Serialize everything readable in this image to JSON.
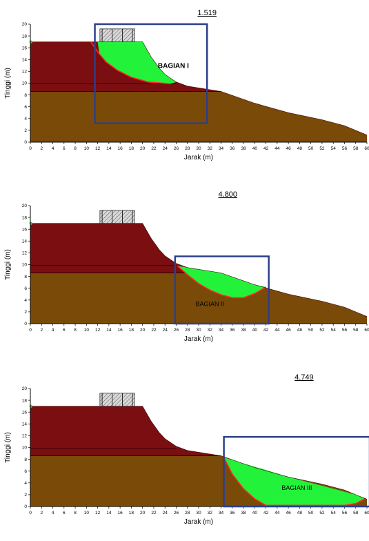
{
  "chart_data": [
    {
      "type": "area",
      "factor_of_safety": "1.519",
      "region_label": "BAGIAN I",
      "xlabel": "Jarak (m)",
      "ylabel": "Tinggi (m)",
      "xlim": [
        0,
        60
      ],
      "ylim": [
        0,
        20
      ],
      "x_ticks": [
        "0",
        "2",
        "4",
        "6",
        "8",
        "10",
        "12",
        "14",
        "16",
        "18",
        "20",
        "22",
        "24",
        "26",
        "28",
        "30",
        "32",
        "34",
        "36",
        "38",
        "40",
        "42",
        "44",
        "46",
        "48",
        "50",
        "52",
        "54",
        "56",
        "58",
        "60"
      ],
      "y_ticks": [
        "0",
        "2",
        "4",
        "6",
        "8",
        "10",
        "12",
        "14",
        "16",
        "18",
        "20"
      ],
      "slip_surface": [
        [
          10.8,
          17.0
        ],
        [
          12.0,
          15.3
        ],
        [
          13.5,
          13.6
        ],
        [
          15.5,
          12.2
        ],
        [
          18.0,
          11.0
        ],
        [
          21.0,
          10.2
        ],
        [
          25.0,
          9.9
        ]
      ],
      "slip_zone_polygon": [
        [
          12.0,
          17.0
        ],
        [
          20.0,
          17.0
        ],
        [
          21.5,
          14.5
        ],
        [
          23.0,
          12.5
        ],
        [
          24.0,
          11.5
        ],
        [
          26.0,
          10.2
        ],
        [
          25.0,
          9.9
        ],
        [
          21.0,
          10.2
        ],
        [
          18.0,
          11.0
        ],
        [
          15.5,
          12.2
        ],
        [
          13.5,
          13.6
        ],
        [
          12.3,
          15.0
        ]
      ],
      "highlight_box": [
        11.5,
        31.5,
        3.2,
        20.0
      ]
    },
    {
      "type": "area",
      "factor_of_safety": "4.800",
      "region_label": "BAGIAN II",
      "xlabel": "Jarak (m)",
      "ylabel": "Tinggi (m)",
      "xlim": [
        0,
        60
      ],
      "ylim": [
        0,
        20
      ],
      "x_ticks": [
        "0",
        "2",
        "4",
        "6",
        "8",
        "10",
        "12",
        "14",
        "16",
        "18",
        "20",
        "22",
        "24",
        "26",
        "28",
        "30",
        "32",
        "34",
        "36",
        "38",
        "40",
        "42",
        "44",
        "46",
        "48",
        "50",
        "52",
        "54",
        "56",
        "58",
        "60"
      ],
      "y_ticks": [
        "0",
        "2",
        "4",
        "6",
        "8",
        "10",
        "12",
        "14",
        "16",
        "18",
        "20"
      ],
      "slip_surface": [
        [
          26.2,
          9.8
        ],
        [
          28.0,
          8.3
        ],
        [
          30.0,
          6.8
        ],
        [
          32.0,
          5.7
        ],
        [
          34.0,
          4.9
        ],
        [
          36.0,
          4.4
        ],
        [
          38.0,
          4.4
        ],
        [
          40.0,
          5.1
        ],
        [
          42.0,
          6.2
        ]
      ],
      "slip_zone_polygon": [
        [
          26.2,
          9.8
        ],
        [
          28.0,
          9.5
        ],
        [
          30.0,
          9.2
        ],
        [
          32.0,
          8.9
        ],
        [
          34.0,
          8.6
        ],
        [
          36.0,
          7.9
        ],
        [
          38.0,
          7.2
        ],
        [
          40.0,
          6.6
        ],
        [
          42.0,
          6.2
        ],
        [
          40.0,
          5.1
        ],
        [
          38.0,
          4.4
        ],
        [
          36.0,
          4.4
        ],
        [
          34.0,
          4.9
        ],
        [
          32.0,
          5.7
        ],
        [
          30.0,
          6.8
        ],
        [
          28.0,
          8.3
        ]
      ],
      "highlight_box": [
        25.8,
        42.5,
        0,
        11.4
      ]
    },
    {
      "type": "area",
      "factor_of_safety": "4.749",
      "region_label": "BAGIAN III",
      "xlabel": "Jarak (m)",
      "ylabel": "Tinggi (m)",
      "xlim": [
        0,
        60
      ],
      "ylim": [
        0,
        20
      ],
      "x_ticks": [
        "0",
        "2",
        "4",
        "6",
        "8",
        "10",
        "12",
        "14",
        "16",
        "18",
        "20",
        "22",
        "24",
        "26",
        "28",
        "30",
        "32",
        "34",
        "36",
        "38",
        "40",
        "42",
        "44",
        "46",
        "48",
        "50",
        "52",
        "54",
        "56",
        "58",
        "60"
      ],
      "y_ticks": [
        "0",
        "2",
        "4",
        "6",
        "8",
        "10",
        "12",
        "14",
        "16",
        "18",
        "20"
      ],
      "slip_surface": [
        [
          34.5,
          8.3
        ],
        [
          36.0,
          5.5
        ],
        [
          38.0,
          3.0
        ],
        [
          40.0,
          1.3
        ],
        [
          42.0,
          0.2
        ],
        [
          56.0,
          0.2
        ],
        [
          58.0,
          0.5
        ],
        [
          59.8,
          1.4
        ]
      ],
      "slip_zone_polygon": [
        [
          34.5,
          8.3
        ],
        [
          38.0,
          7.3
        ],
        [
          42.0,
          6.2
        ],
        [
          46.0,
          5.0
        ],
        [
          50.0,
          4.0
        ],
        [
          54.0,
          3.0
        ],
        [
          58.0,
          2.0
        ],
        [
          59.8,
          1.4
        ],
        [
          58.0,
          0.5
        ],
        [
          56.0,
          0.2
        ],
        [
          42.0,
          0.2
        ],
        [
          40.0,
          1.3
        ],
        [
          38.0,
          3.0
        ],
        [
          36.0,
          5.5
        ]
      ],
      "highlight_box": [
        34.5,
        60.5,
        0,
        11.8
      ]
    }
  ],
  "section": {
    "ground_surface": [
      [
        0,
        17.0
      ],
      [
        20.0,
        17.0
      ],
      [
        21.5,
        14.5
      ],
      [
        23.0,
        12.5
      ],
      [
        24.0,
        11.5
      ],
      [
        26.0,
        10.2
      ],
      [
        28.0,
        9.5
      ],
      [
        34.0,
        8.6
      ],
      [
        40.0,
        6.6
      ],
      [
        46.0,
        5.0
      ],
      [
        52.0,
        3.8
      ],
      [
        56.0,
        2.8
      ],
      [
        58.0,
        2.0
      ],
      [
        60.0,
        1.2
      ],
      [
        60.0,
        0
      ]
    ],
    "layer_boundary": [
      [
        0,
        8.6
      ],
      [
        34.0,
        8.6
      ]
    ],
    "upper_layer_top_line": [
      [
        0,
        9.9
      ],
      [
        26.0,
        9.9
      ]
    ],
    "load_block": [
      12.4,
      18.6,
      17.0,
      19.2
    ]
  },
  "colors": {
    "upper_layer": "#7A0E10",
    "lower_layer": "#7A4A08",
    "slip_zone": "#22F33A",
    "slip_line": "#FF2A2A",
    "highlight_box": "#2C3F8C",
    "load_block": "#d9d9d9",
    "axis": "#000000"
  }
}
